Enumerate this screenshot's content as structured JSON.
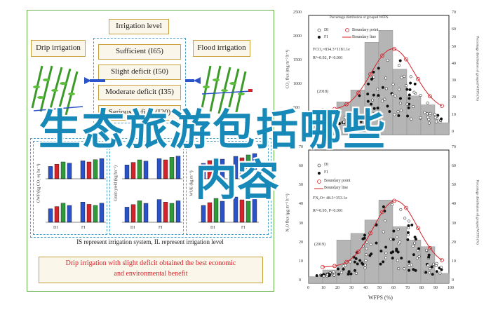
{
  "flowchart": {
    "irrigation_level": "Irrigation level",
    "drip": "Drip irrigation",
    "flood": "Flood irrigation",
    "levels": [
      "Sufficient (I65)",
      "Slight deficit (I50)",
      "Moderate deficit (I35)",
      "Serious deficit (I20)"
    ],
    "note": "IS represent irrigation system, IL represent irrigation level",
    "conclusion_line1": "Drip irrigation with slight deficit obtained the best economic",
    "conclusion_line2": "and environmental benefit",
    "mini_chart_ylabels": [
      "GWP (kg CO₂ eq ha⁻¹)",
      "Grain yield (kg ha⁻¹)",
      "WUE (kg m⁻³)"
    ],
    "mini_chart_xlabels": [
      "DI",
      "FI"
    ],
    "drip_pipe_label": "Drip pipe",
    "flood_pipe_label": "Flood pipe"
  },
  "overlay_title_line1": "生态旅游包括哪些",
  "overlay_title_line2": "内容",
  "scatter_2018": {
    "year": "(2018)",
    "legend": [
      "DI",
      "FI"
    ],
    "legend_right": [
      "Boundary point",
      "Boundary line"
    ],
    "top_label": "Percentage distribution of grouped WFPS",
    "equation": "FCO₂=834.3+1181.1e",
    "r2": "R²=0.92, P<0.001",
    "ylabel": "CO₂ flux (mg m⁻² h⁻¹)",
    "ylabel_right": "Percentage distribution of grouped WFPS (%)",
    "yticks": [
      "0",
      "500",
      "1000",
      "1500",
      "2000",
      "2500"
    ],
    "yticks_right": [
      "0",
      "10",
      "20",
      "30",
      "40",
      "50",
      "60",
      "70"
    ]
  },
  "scatter_2019": {
    "year": "(2019)",
    "legend": [
      "DI",
      "FI"
    ],
    "legend_right": [
      "Boundary point",
      "Boundary line"
    ],
    "equation": "FN₂O= 48.3+353.1e",
    "r2": "R²=0.95, P<0.001",
    "ylabel": "N₂O flux (μg m⁻² h⁻¹)",
    "ylabel_right": "Percentage distribution of grouped WFPS (%)",
    "yticks": [
      "0",
      "10",
      "20",
      "30",
      "40",
      "50",
      "60",
      "70"
    ],
    "xticks": [
      "0",
      "10",
      "20",
      "30",
      "40",
      "50",
      "60",
      "70",
      "80",
      "90",
      "100"
    ],
    "xlabel": "WFPS (%)"
  },
  "colors": {
    "box_border": "#c9a13a",
    "panel_dash": "#4aa0c9",
    "red": "#d4232a",
    "green": "#2f9a3a",
    "blue": "#2a52c9",
    "hist_gray": "#b5b5b5",
    "overlay": "#1689b8"
  }
}
